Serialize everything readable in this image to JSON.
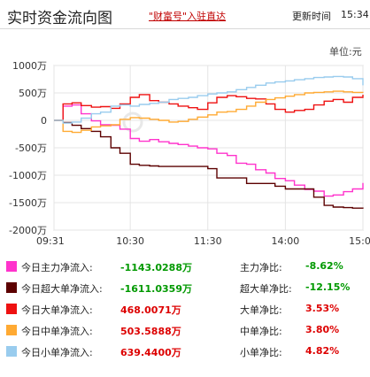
{
  "header": {
    "title": "实时资金流向图",
    "promo_link": "\"财富号\"入驻直达",
    "update_label": "更新时间",
    "update_time": "15:34"
  },
  "unit_label": "单位:元",
  "colors": {
    "main": "#ff33cc",
    "super": "#5c0000",
    "large": "#ee1111",
    "medium": "#ffaa33",
    "small": "#99ccee",
    "pos": "#dd0000",
    "neg": "#009900"
  },
  "chart_data": {
    "type": "line",
    "xlabel": "",
    "ylabel": "",
    "x_ticks": [
      "09:31",
      "10:30",
      "11:30",
      "14:00",
      "15:00"
    ],
    "y_ticks": [
      "1000万",
      "500万",
      "0",
      "-500万",
      "-1000万",
      "-1500万",
      "-2000万"
    ],
    "ylim": [
      -2000,
      1000
    ],
    "x": [
      "09:31",
      "09:38",
      "09:45",
      "09:52",
      "10:00",
      "10:07",
      "10:15",
      "10:22",
      "10:30",
      "10:37",
      "10:45",
      "10:52",
      "11:00",
      "11:07",
      "11:15",
      "11:22",
      "11:30",
      "13:07",
      "13:15",
      "13:22",
      "13:30",
      "13:37",
      "13:45",
      "13:52",
      "14:00",
      "14:07",
      "14:15",
      "14:22",
      "14:30",
      "14:37",
      "14:45",
      "14:52",
      "15:00"
    ],
    "series": [
      {
        "name": "今日主力净流入",
        "color_key": "main",
        "values": [
          0,
          260,
          280,
          120,
          -10,
          -80,
          -90,
          -160,
          -330,
          -380,
          -350,
          -390,
          -420,
          -440,
          -470,
          -500,
          -520,
          -600,
          -640,
          -780,
          -800,
          -900,
          -960,
          -1060,
          -1100,
          -1180,
          -1260,
          -1290,
          -1380,
          -1360,
          -1300,
          -1250,
          -1140
        ]
      },
      {
        "name": "今日超大单净流入",
        "color_key": "super",
        "values": [
          0,
          -40,
          -90,
          -150,
          -200,
          -300,
          -500,
          -600,
          -800,
          -820,
          -830,
          -840,
          -840,
          -840,
          -840,
          -840,
          -880,
          -1050,
          -1050,
          -1050,
          -1150,
          -1150,
          -1150,
          -1200,
          -1250,
          -1250,
          -1250,
          -1400,
          -1550,
          -1580,
          -1590,
          -1600,
          -1610
        ]
      },
      {
        "name": "今日大单净流入",
        "color_key": "large",
        "values": [
          0,
          300,
          320,
          270,
          240,
          250,
          220,
          300,
          420,
          470,
          360,
          330,
          300,
          260,
          230,
          200,
          320,
          420,
          450,
          430,
          400,
          390,
          300,
          200,
          150,
          180,
          200,
          280,
          350,
          380,
          330,
          420,
          468
        ]
      },
      {
        "name": "今日中单净流入",
        "color_key": "medium",
        "values": [
          0,
          -200,
          -220,
          -180,
          -120,
          -100,
          -80,
          20,
          50,
          40,
          20,
          0,
          -30,
          -20,
          20,
          60,
          100,
          150,
          160,
          200,
          260,
          330,
          380,
          410,
          440,
          470,
          500,
          510,
          520,
          530,
          520,
          510,
          504
        ]
      },
      {
        "name": "今日小单净流入",
        "color_key": "small",
        "values": [
          0,
          -50,
          -30,
          40,
          120,
          150,
          260,
          280,
          260,
          290,
          310,
          330,
          380,
          400,
          420,
          450,
          480,
          500,
          520,
          560,
          600,
          640,
          680,
          700,
          720,
          740,
          760,
          780,
          790,
          800,
          790,
          760,
          639
        ]
      }
    ],
    "grid": true,
    "legend": "bottom"
  },
  "legend": {
    "rows": [
      {
        "label": "今日主力净流入:",
        "value": "-1143.0288万",
        "value_color": "neg",
        "color_key": "main",
        "ratio_label": "主力净比:",
        "ratio": "-8.62%",
        "ratio_color": "neg"
      },
      {
        "label": "今日超大单净流入:",
        "value": "-1611.0359万",
        "value_color": "neg",
        "color_key": "super",
        "ratio_label": "超大单净比:",
        "ratio": "-12.15%",
        "ratio_color": "neg"
      },
      {
        "label": "今日大单净流入:",
        "value": "468.0071万",
        "value_color": "pos",
        "color_key": "large",
        "ratio_label": "大单净比:",
        "ratio": "3.53%",
        "ratio_color": "pos"
      },
      {
        "label": "今日中单净流入:",
        "value": "503.5888万",
        "value_color": "pos",
        "color_key": "medium",
        "ratio_label": "中单净比:",
        "ratio": "3.80%",
        "ratio_color": "pos"
      },
      {
        "label": "今日小单净流入:",
        "value": "639.4400万",
        "value_color": "pos",
        "color_key": "small",
        "ratio_label": "小单净比:",
        "ratio": "4.82%",
        "ratio_color": "pos"
      }
    ]
  }
}
